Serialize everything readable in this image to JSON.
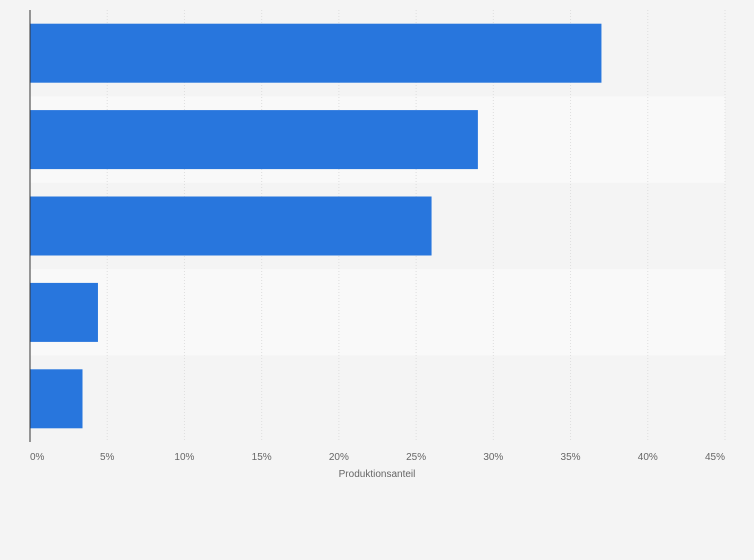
{
  "chart_data": {
    "type": "bar",
    "orientation": "horizontal",
    "categories": [
      "",
      "",
      "",
      "",
      ""
    ],
    "values": [
      37,
      29,
      26,
      4.4,
      3.4
    ],
    "title": "",
    "xlabel": "Produktionsanteil",
    "ylabel": "",
    "xlim": [
      0,
      45
    ],
    "xticks": [
      "0%",
      "5%",
      "10%",
      "15%",
      "20%",
      "25%",
      "30%",
      "35%",
      "40%",
      "45%"
    ],
    "grid": true,
    "bar_color": "#2876dd",
    "band_colors": [
      "#f4f4f4",
      "#f9f9f9"
    ],
    "gridline_color": "#dedede",
    "axis_color": "#333333"
  }
}
